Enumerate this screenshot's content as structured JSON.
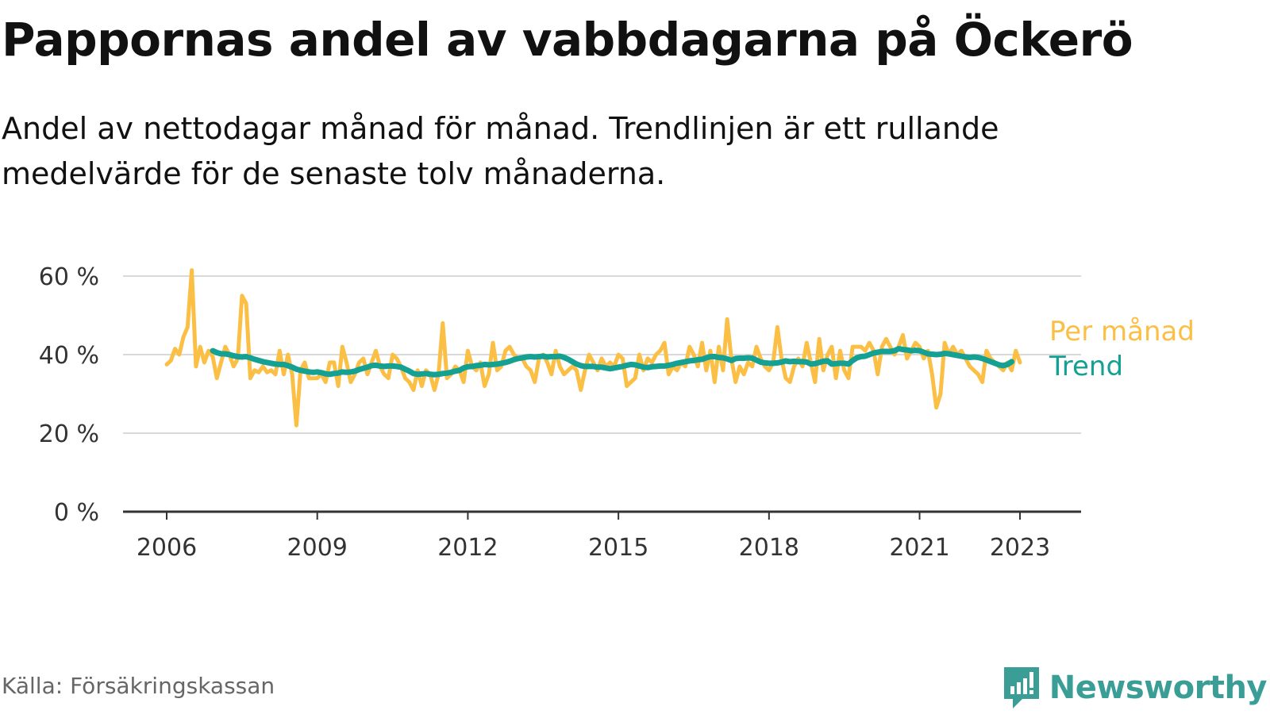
{
  "title": "Pappornas andel av vabbdagarna på Öckerö",
  "subtitle": "Andel av nettodagar månad för månad. Trendlinjen är ett rullande medelvärde för de senaste tolv månaderna.",
  "source": "Källa: Försäkringskassan",
  "brand": {
    "name": "Newsworthy",
    "icon": "newsworthy-logo-icon"
  },
  "colors": {
    "monthly": "#fbbf45",
    "trend": "#14a093",
    "grid": "#d9d9d9",
    "axis": "#333333"
  },
  "chart_data": {
    "type": "line",
    "y_unit": "%",
    "ylim": [
      0,
      60
    ],
    "y_ticks": [
      0,
      20,
      40,
      60
    ],
    "y_tick_labels": [
      "0 %",
      "20 %",
      "40 %",
      "60 %"
    ],
    "xlim": [
      2005.8,
      2024.2
    ],
    "x_ticks": [
      2006,
      2009,
      2012,
      2015,
      2018,
      2021,
      2023
    ],
    "x_tick_labels": [
      "2006",
      "2009",
      "2012",
      "2015",
      "2018",
      "2021",
      "2023"
    ],
    "grid": true,
    "legend": "right, end of lines",
    "series": [
      {
        "name": "Per månad",
        "color": "#fbbf45",
        "start": 2006.0,
        "step_months": 1,
        "values": [
          37.5,
          38.5,
          41.5,
          40,
          44.5,
          47,
          61.5,
          37,
          42,
          38,
          41,
          39.5,
          34,
          38,
          42,
          40,
          37,
          39,
          55,
          53,
          34,
          36,
          35.5,
          37,
          35.5,
          36,
          35,
          41,
          35,
          40,
          35,
          22,
          36,
          38,
          34,
          34,
          34,
          35,
          33,
          38,
          38,
          32,
          42,
          38,
          33,
          35,
          38,
          39,
          35,
          38,
          41,
          37,
          35,
          34,
          40,
          39,
          37,
          34,
          33,
          31,
          36,
          32,
          36,
          35,
          31,
          35,
          48,
          34,
          35,
          37,
          36,
          33,
          41,
          37,
          36,
          38,
          32,
          35,
          43,
          36,
          37,
          41,
          42,
          40,
          39,
          39,
          37,
          36,
          33,
          39,
          40,
          38,
          35,
          41,
          37,
          35,
          36,
          37,
          36,
          31,
          36,
          40,
          38,
          36,
          39,
          37,
          38,
          37,
          40,
          39,
          32,
          33,
          34,
          40,
          36,
          39,
          38,
          40,
          41,
          43,
          35,
          37,
          36,
          38,
          37,
          42,
          40,
          37,
          43,
          36,
          41,
          33,
          42,
          36,
          49,
          39,
          33,
          37,
          35,
          38,
          37,
          42,
          39,
          37,
          36,
          38,
          47,
          39,
          34,
          33,
          37,
          39,
          37,
          43,
          38,
          33,
          44,
          36,
          40,
          42,
          34,
          41,
          36,
          34,
          42,
          42,
          42,
          41,
          43,
          41,
          35,
          42,
          44,
          42,
          40,
          42,
          45,
          39,
          41,
          43,
          42,
          39,
          41,
          35,
          26.5,
          30,
          43,
          40,
          42,
          40,
          41,
          39,
          37,
          36,
          35,
          33,
          41,
          39,
          38,
          37,
          36,
          38,
          36,
          41,
          38
        ]
      },
      {
        "name": "Trend",
        "color": "#14a093",
        "start": 2006.917,
        "step_months": 1,
        "values": [
          41,
          40.5,
          40.2,
          40.2,
          40,
          39.7,
          39.5,
          39.4,
          39.5,
          39.2,
          38.8,
          38.5,
          38.2,
          38,
          37.8,
          37.6,
          37.5,
          37.5,
          37.2,
          36.8,
          36.3,
          36,
          35.8,
          35.6,
          35.5,
          35.6,
          35.4,
          35.1,
          35,
          35.2,
          35.3,
          35.6,
          35.5,
          35.6,
          35.8,
          36.2,
          36.5,
          36.8,
          37.2,
          37.3,
          37.1,
          37,
          37.1,
          37.1,
          37,
          36.8,
          36.3,
          35.8,
          35.2,
          35,
          35.1,
          35.2,
          35,
          34.9,
          35,
          35.2,
          35.3,
          35.5,
          35.8,
          36,
          36.6,
          36.9,
          37,
          37.2,
          37.3,
          37.5,
          37.4,
          37.5,
          37.6,
          37.8,
          38,
          38.3,
          38.7,
          39,
          39.2,
          39.4,
          39.5,
          39.4,
          39.5,
          39.6,
          39.4,
          39.5,
          39.5,
          39.6,
          39.3,
          38.8,
          38.2,
          37.6,
          37.2,
          37,
          37,
          37,
          36.8,
          36.8,
          36.6,
          36.4,
          36.6,
          36.8,
          37,
          37.3,
          37.5,
          37.4,
          37.1,
          36.8,
          36.7,
          36.9,
          37,
          37.1,
          37.1,
          37.3,
          37.5,
          37.8,
          38,
          38.2,
          38.4,
          38.5,
          38.7,
          38.8,
          39.2,
          39.5,
          39.5,
          39.3,
          39.2,
          38.9,
          38.5,
          39,
          39.1,
          39.1,
          39.2,
          39.1,
          38.6,
          38.1,
          37.9,
          37.8,
          37.8,
          37.9,
          38.1,
          38.4,
          38.2,
          38.3,
          38.2,
          38.2,
          38.1,
          37.6,
          37.7,
          38,
          38.3,
          38.4,
          37.6,
          37.7,
          37.8,
          37.8,
          37.6,
          38.5,
          39.2,
          39.5,
          39.6,
          40,
          40.4,
          40.6,
          40.8,
          40.8,
          40.8,
          41,
          41.5,
          41.3,
          41.2,
          41,
          41.1,
          41,
          40.6,
          40.2,
          40.1,
          40,
          40.1,
          40.3,
          40.2,
          40,
          39.8,
          39.6,
          39.4,
          39.3,
          39.4,
          39.3,
          39,
          38.6,
          38.2,
          37.8,
          37.4,
          37.2,
          37.5,
          38.2
        ]
      }
    ]
  }
}
